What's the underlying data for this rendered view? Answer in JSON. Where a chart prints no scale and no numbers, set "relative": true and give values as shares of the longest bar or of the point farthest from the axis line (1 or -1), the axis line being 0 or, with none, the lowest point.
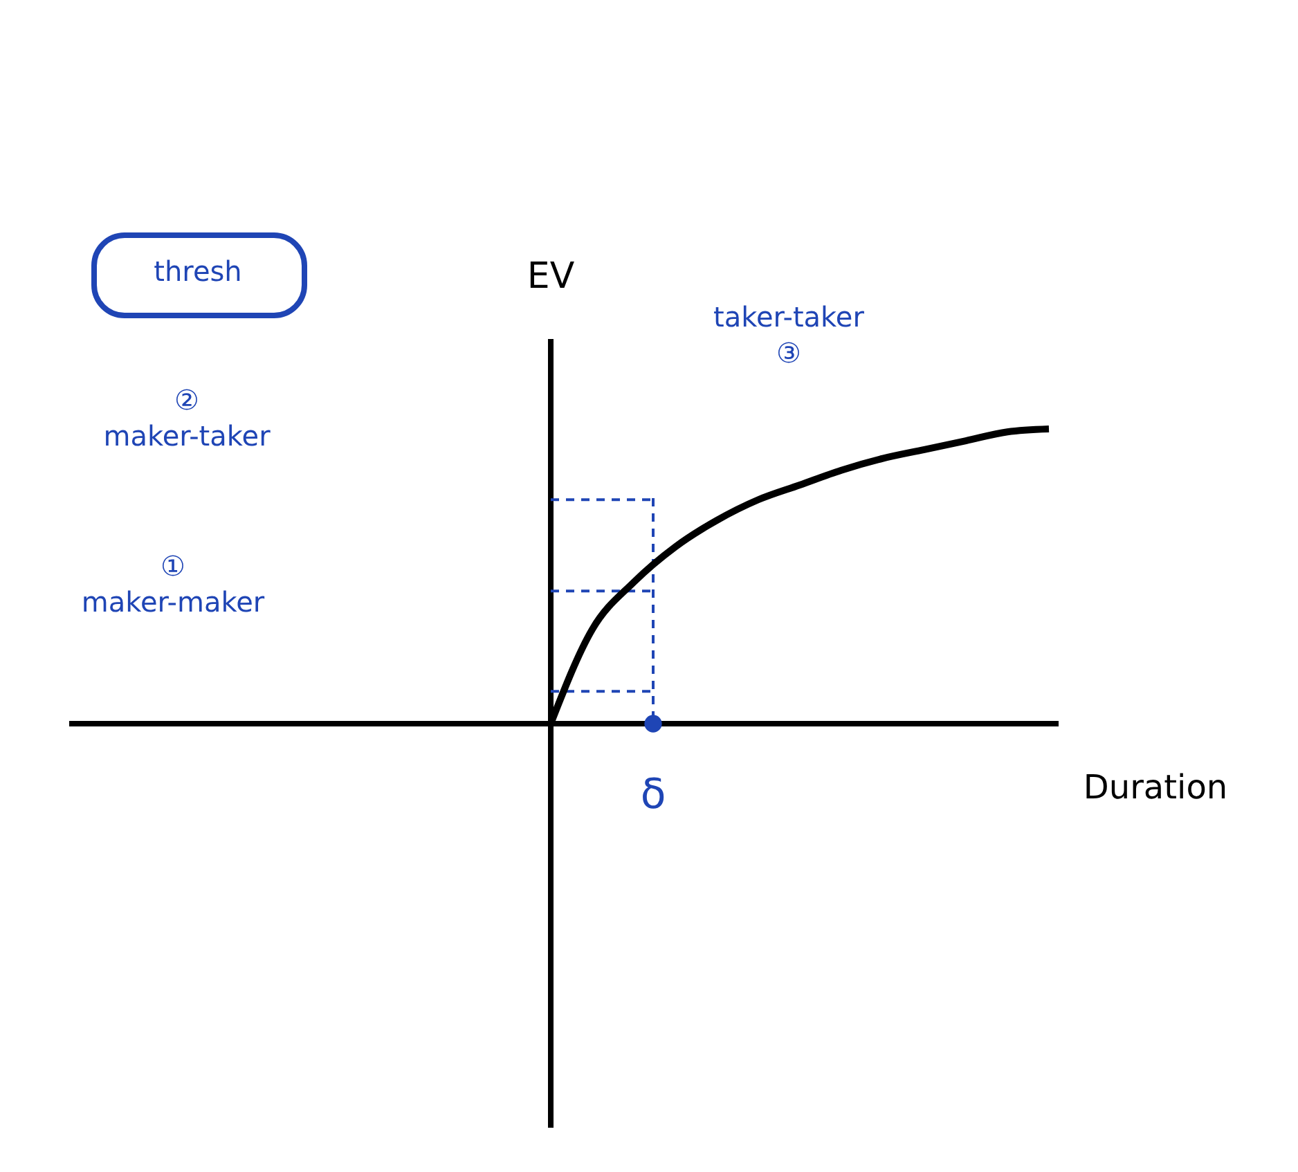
{
  "chart_data": {
    "type": "line",
    "relative": true,
    "xlabel": "Duration",
    "ylabel": "EV",
    "categories": [
      null,
      null,
      null,
      null,
      null,
      null,
      null,
      null,
      null,
      null,
      null,
      null,
      null
    ],
    "series": [
      {
        "color": "#000000",
        "values": [
          0,
          0.32,
          0.48,
          0.6,
          0.69,
          0.76,
          0.81,
          0.86,
          0.9,
          0.93,
          0.96,
          0.99,
          1
        ]
      }
    ],
    "ref_lines": [
      {
        "axis": "y",
        "value": 0.11,
        "color": "#1f45b5",
        "line_style": "dashed"
      },
      {
        "axis": "y",
        "value": 0.45,
        "color": "#1f45b5",
        "line_style": "dashed"
      },
      {
        "axis": "y",
        "value": 0.76,
        "color": "#1f45b5",
        "line_style": "dashed"
      }
    ],
    "annotations": [
      "thresh",
      "② maker-taker",
      "① maker-maker",
      "taker-taker ③",
      "δ"
    ],
    "marker": "none",
    "line_style": "solid"
  }
}
